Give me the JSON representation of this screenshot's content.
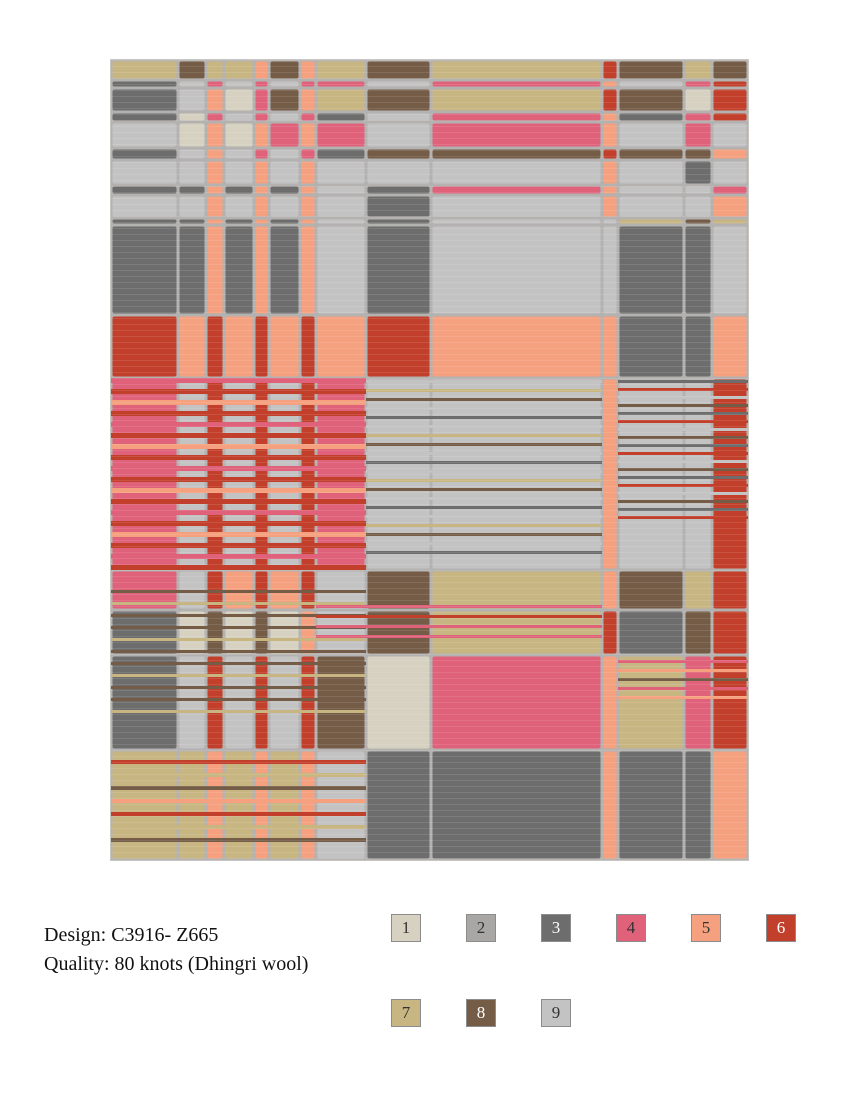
{
  "design": {
    "label": "Design:",
    "code": "C3916- Z665"
  },
  "quality": {
    "label": "Quality:",
    "value": "80 knots  (Dhingri wool)"
  },
  "palette": [
    {
      "number": "1",
      "color": "#d6d1c1",
      "text_color": "#333333"
    },
    {
      "number": "2",
      "color": "#a8a7a6",
      "text_color": "#333333"
    },
    {
      "number": "3",
      "color": "#6d6d6d",
      "text_color": "#ffffff"
    },
    {
      "number": "4",
      "color": "#e0627a",
      "text_color": "#333333"
    },
    {
      "number": "5",
      "color": "#f5a07e",
      "text_color": "#333333"
    },
    {
      "number": "6",
      "color": "#c2402b",
      "text_color": "#ffffff"
    },
    {
      "number": "7",
      "color": "#c8b682",
      "text_color": "#333333"
    },
    {
      "number": "8",
      "color": "#745c47",
      "text_color": "#ffffff"
    },
    {
      "number": "9",
      "color": "#c4c3c3",
      "text_color": "#333333"
    }
  ]
}
